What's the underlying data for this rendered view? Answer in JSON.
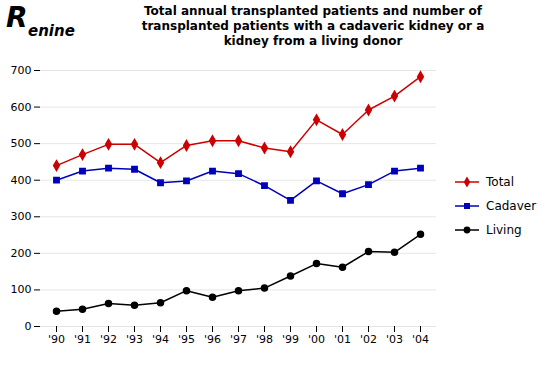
{
  "chart_data": {
    "type": "line",
    "title": "Total annual transplanted patients and number of\ntransplanted patients with a cadaveric kidney or a\nkidney from a living donor",
    "annotations": [
      "R",
      "enine"
    ],
    "categories": [
      "'90",
      "'91",
      "'92",
      "'93",
      "'94",
      "'95",
      "'96",
      "'97",
      "'98",
      "'99",
      "'00",
      "'01",
      "'02",
      "'03",
      "'04"
    ],
    "series": [
      {
        "name": "Total",
        "color": "#cc0000",
        "marker": "diamond",
        "values": [
          440,
          470,
          498,
          498,
          448,
          495,
          508,
          508,
          488,
          478,
          565,
          525,
          592,
          630,
          683
        ]
      },
      {
        "name": "Cadaver",
        "color": "#0000bb",
        "marker": "square",
        "values": [
          400,
          425,
          433,
          430,
          393,
          398,
          425,
          418,
          385,
          345,
          398,
          363,
          388,
          425,
          433
        ]
      },
      {
        "name": "Living",
        "color": "#000000",
        "marker": "circle",
        "values": [
          42,
          47,
          63,
          58,
          65,
          98,
          80,
          98,
          105,
          138,
          172,
          162,
          205,
          203,
          252
        ]
      }
    ],
    "ylim": [
      0,
      700
    ],
    "yticks": [
      0,
      100,
      200,
      300,
      400,
      500,
      600,
      700
    ],
    "grid": true,
    "legend": "right"
  }
}
